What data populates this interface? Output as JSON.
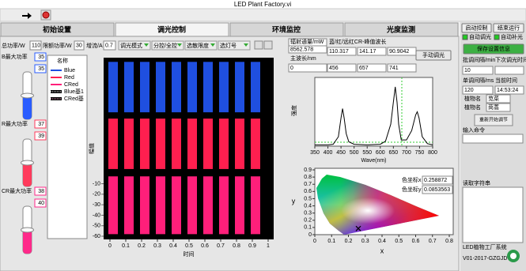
{
  "window_title": "LED Plant Factory.vi",
  "tabs": [
    "初始设置",
    "调光控制",
    "环境监控",
    "光度监测"
  ],
  "controls": {
    "labels": [
      "总功率/W",
      "限额功率/W",
      "增流/A"
    ],
    "values": [
      110,
      30,
      0.7
    ],
    "dropdowns": [
      "调光模式",
      "分控/全控",
      "选散限度",
      "选灯号"
    ]
  },
  "sliders": [
    {
      "label": "B最大功率",
      "values": [
        35,
        35
      ],
      "color": "#2a5cff"
    },
    {
      "label": "R最大功率",
      "values": [
        37,
        39
      ],
      "color": "#ff3b5c"
    },
    {
      "label": "CR最大功率",
      "values": [
        38,
        40
      ],
      "color": "#ff2a8a"
    }
  ],
  "info": {
    "flux_label": "辐射通量/mW",
    "flux": 8562.578,
    "dominant_label": "主波长/nm",
    "dominant": 0,
    "peak_label": "蓝/红/远红CR-峰值波长",
    "peak_values": [
      110.317,
      141.17,
      90.9042
    ],
    "peak_wavelengths": [
      456,
      657,
      741
    ],
    "manual_button": "手动调光"
  },
  "right_panel": {
    "start": "启动控制",
    "stop": "结束运行",
    "checks": [
      "自动调光",
      "自动补光"
    ],
    "save": "保存设置信息",
    "batch_label": "批调间隔/min",
    "next_label": "下次调光时间",
    "batch": 10,
    "single_label": "单调间隔/ms",
    "time_label": "当前时间",
    "single": 120,
    "time": "14:53:24",
    "plants": [
      {
        "label": "植物名",
        "value": "苋菜"
      },
      {
        "label": "植物名",
        "value": "茼蒿"
      }
    ],
    "restart": "重新开始调节",
    "command_label": "输入命令",
    "read_label": "读取字符串",
    "footer": [
      "LED植物工厂系统",
      "V01-2017-GZGJD"
    ]
  },
  "chart_data": [
    {
      "type": "bar",
      "x_label": "时间",
      "y_label": "幅值",
      "legend_title": "名称",
      "x": [
        0.02,
        0.12,
        0.22,
        0.32,
        0.42,
        0.52,
        0.62,
        0.72,
        0.82,
        0.92
      ],
      "series": [
        {
          "name": "Blue",
          "color": "#1f4fe0",
          "values": [
            [
              58,
              106
            ],
            [
              58,
              106
            ],
            [
              58,
              106
            ],
            [
              58,
              106
            ],
            [
              58,
              106
            ],
            [
              58,
              106
            ],
            [
              58,
              106
            ],
            [
              58,
              106
            ],
            [
              58,
              106
            ],
            [
              58,
              106
            ]
          ]
        },
        {
          "name": "Red",
          "color": "#ff1f4f",
          "values": [
            [
              4,
              52
            ],
            [
              4,
              52
            ],
            [
              4,
              52
            ],
            [
              4,
              52
            ],
            [
              4,
              52
            ],
            [
              4,
              52
            ],
            [
              4,
              52
            ],
            [
              4,
              52
            ],
            [
              4,
              52
            ],
            [
              4,
              52
            ]
          ]
        },
        {
          "name": "CRed",
          "color": "#ff1f7a",
          "values": [
            [
              -58,
              -3
            ],
            [
              -58,
              -3
            ],
            [
              -58,
              -3
            ],
            [
              -58,
              -3
            ],
            [
              -58,
              -3
            ],
            [
              -58,
              -3
            ],
            [
              -58,
              -3
            ],
            [
              -58,
              -3
            ],
            [
              -58,
              -3
            ],
            [
              -58,
              -3
            ]
          ]
        }
      ],
      "extra_legend": [
        {
          "name": "Blue基1",
          "color": "#ffffff"
        },
        {
          "name": "CRed基",
          "color": "#ffaacc"
        }
      ],
      "xlim": [
        -0.04,
        1.035
      ],
      "xticks": [
        0,
        0.1,
        0.2,
        0.3,
        0.4,
        0.5,
        0.6,
        0.7,
        0.8,
        0.9,
        1
      ],
      "ylim": [
        -63,
        110
      ],
      "yticks": [
        -60,
        -50,
        -40,
        -30,
        -20,
        -10
      ]
    },
    {
      "type": "line",
      "x_label": "Wave(nm)",
      "y_label": "强度",
      "color": "#000000",
      "x": [
        350,
        400,
        420,
        440,
        450,
        456,
        462,
        470,
        480,
        500,
        550,
        600,
        620,
        640,
        650,
        657,
        664,
        670,
        680,
        700,
        720,
        735,
        741,
        748,
        760,
        780,
        800
      ],
      "values": [
        0.02,
        0.02,
        0.03,
        0.15,
        0.45,
        0.6,
        0.45,
        0.2,
        0.07,
        0.03,
        0.02,
        0.03,
        0.08,
        0.35,
        0.7,
        0.95,
        0.7,
        0.35,
        0.1,
        0.1,
        0.25,
        0.5,
        0.55,
        0.45,
        0.15,
        0.04,
        0.02
      ],
      "xlim": [
        350,
        800
      ],
      "xticks": [
        350,
        400,
        450,
        500,
        550,
        600,
        650,
        700,
        750,
        800
      ],
      "ylim": [
        0,
        1.1
      ]
    },
    {
      "type": "scatter",
      "x_label": "x",
      "y_label": "y",
      "coord_labels": [
        "色坐标x",
        "色坐标y"
      ],
      "color": "#000000",
      "x": [
        0.258872
      ],
      "values": [
        0.0853563
      ],
      "xlim": [
        0,
        0.8
      ],
      "xticks": [
        0,
        0.1,
        0.2,
        0.3,
        0.4,
        0.5,
        0.6,
        0.7,
        0.8
      ],
      "ylim": [
        0,
        0.9
      ],
      "yticks": [
        0,
        0.1,
        0.2,
        0.3,
        0.4,
        0.5,
        0.6,
        0.7,
        0.8,
        0.9
      ]
    }
  ]
}
